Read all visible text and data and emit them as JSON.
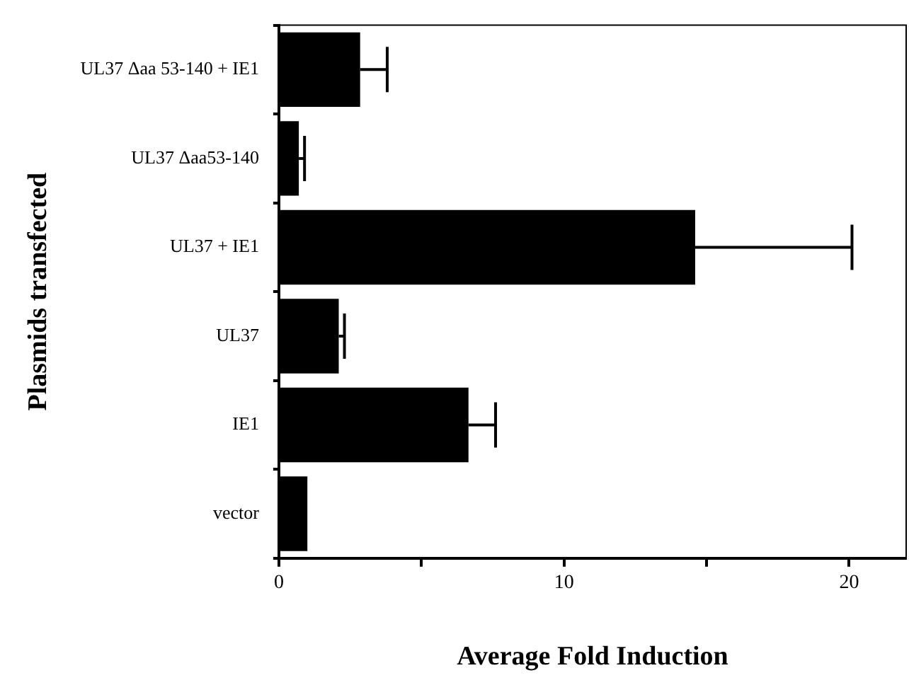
{
  "chart_data": {
    "type": "bar",
    "orientation": "horizontal",
    "xlabel": "Average Fold Induction",
    "ylabel": "Plasmids transfected",
    "categories": [
      "UL37 Δaa 53-140 + IE1",
      "UL37 Δaa53-140",
      "UL37 + IE1",
      "UL37",
      "IE1",
      "vector"
    ],
    "series": [
      {
        "color": "#000000",
        "values": [
          2.85,
          0.7,
          14.6,
          2.1,
          6.65,
          1.0
        ],
        "errors": [
          [
            2.85,
            3.8
          ],
          [
            0.7,
            0.9
          ],
          [
            14.6,
            20.1
          ],
          [
            2.1,
            2.3
          ],
          [
            6.65,
            7.6
          ],
          null
        ]
      }
    ],
    "xlim": [
      0,
      22
    ],
    "xticks": [
      0,
      {
        "value": 5,
        "label": null
      },
      10,
      {
        "value": 15,
        "label": null
      },
      20
    ],
    "grid": false,
    "legend": false
  }
}
